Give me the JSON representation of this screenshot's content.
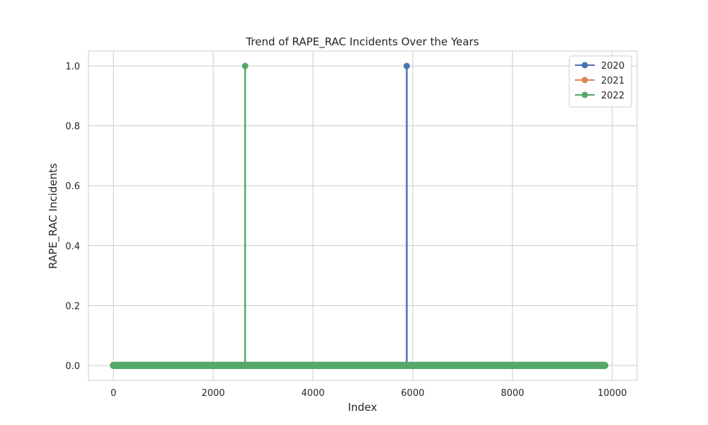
{
  "chart_data": {
    "type": "line",
    "title": "Trend of RAPE_RAC Incidents Over the Years",
    "xlabel": "Index",
    "ylabel": "RAPE_RAC Incidents",
    "xlim": [
      -500,
      10500
    ],
    "ylim": [
      -0.05,
      1.05
    ],
    "x_ticks": [
      0,
      2000,
      4000,
      6000,
      8000,
      10000
    ],
    "y_ticks": [
      0.0,
      0.2,
      0.4,
      0.6,
      0.8,
      1.0
    ],
    "x_tick_labels": [
      "0",
      "2000",
      "4000",
      "6000",
      "8000",
      "10000"
    ],
    "y_tick_labels": [
      "0.0",
      "0.2",
      "0.4",
      "0.6",
      "0.8",
      "1.0"
    ],
    "grid": true,
    "legend_position": "top-right",
    "x_range": [
      0,
      9850
    ],
    "series": [
      {
        "name": "2020",
        "color": "#4c72b0",
        "baseline": 0,
        "spikes": [
          {
            "x": 5880,
            "y": 1
          }
        ]
      },
      {
        "name": "2021",
        "color": "#dd8452",
        "baseline": 0,
        "spikes": []
      },
      {
        "name": "2022",
        "color": "#55a868",
        "baseline": 0,
        "spikes": [
          {
            "x": 2640,
            "y": 1
          }
        ]
      }
    ]
  }
}
